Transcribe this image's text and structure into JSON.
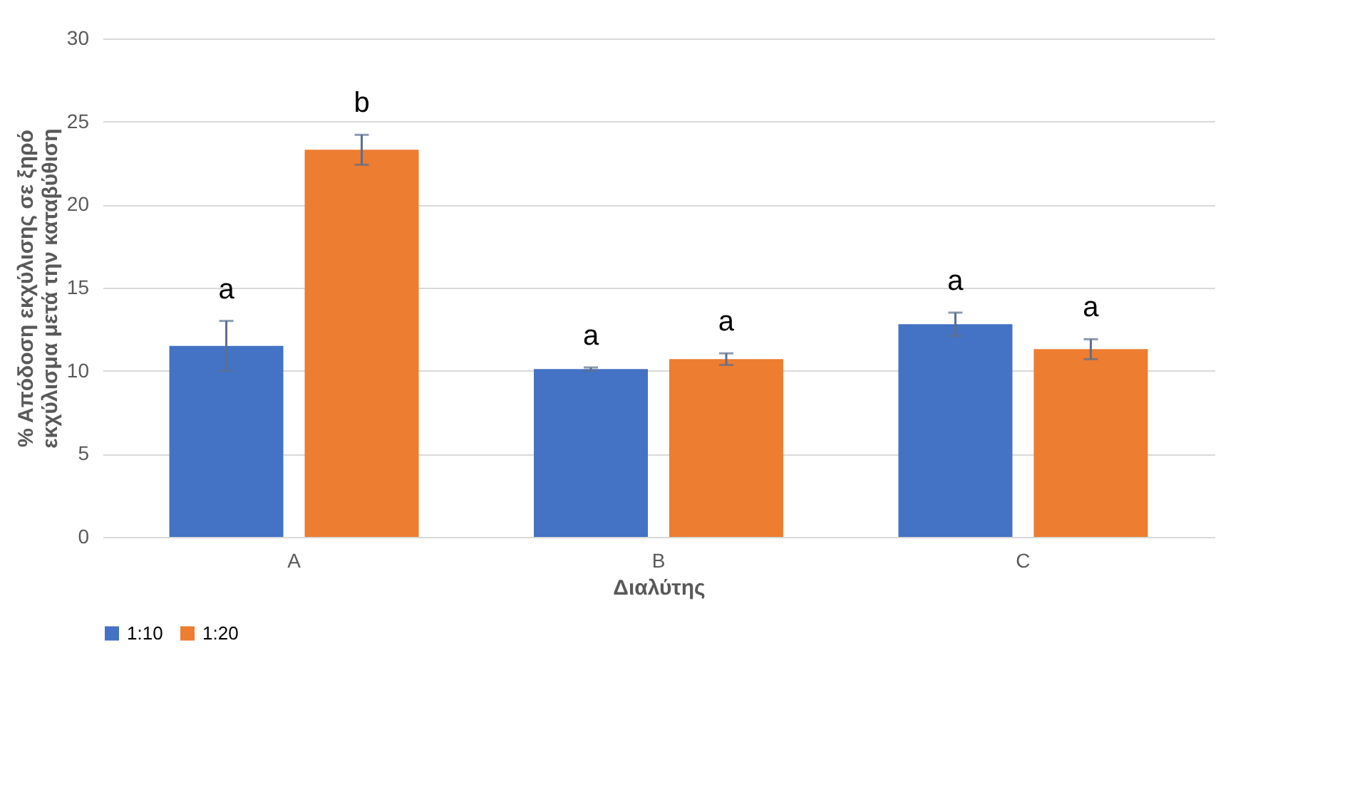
{
  "chart_data": {
    "type": "bar",
    "xlabel": "Διαλύτης",
    "ylabel": "% Απόδοση εκχύλισης σε ξηρό εκχύλισμα μετά την καταβύθιση",
    "categories": [
      "A",
      "B",
      "C"
    ],
    "series": [
      {
        "name": "1:10",
        "color": "#4472c4",
        "values": [
          11.5,
          10.1,
          12.8
        ],
        "errors": [
          1.5,
          0.1,
          0.7
        ],
        "value_labels": [
          "a",
          "a",
          "a"
        ]
      },
      {
        "name": "1:20",
        "color": "#ed7d31",
        "values": [
          23.3,
          10.7,
          11.3
        ],
        "errors": [
          0.9,
          0.35,
          0.6
        ],
        "value_labels": [
          "b",
          "a",
          "a"
        ]
      }
    ],
    "ylim": [
      0,
      30
    ],
    "yticks": [
      0,
      5,
      10,
      15,
      20,
      25,
      30
    ],
    "grid": "y",
    "legend": "bottom"
  }
}
